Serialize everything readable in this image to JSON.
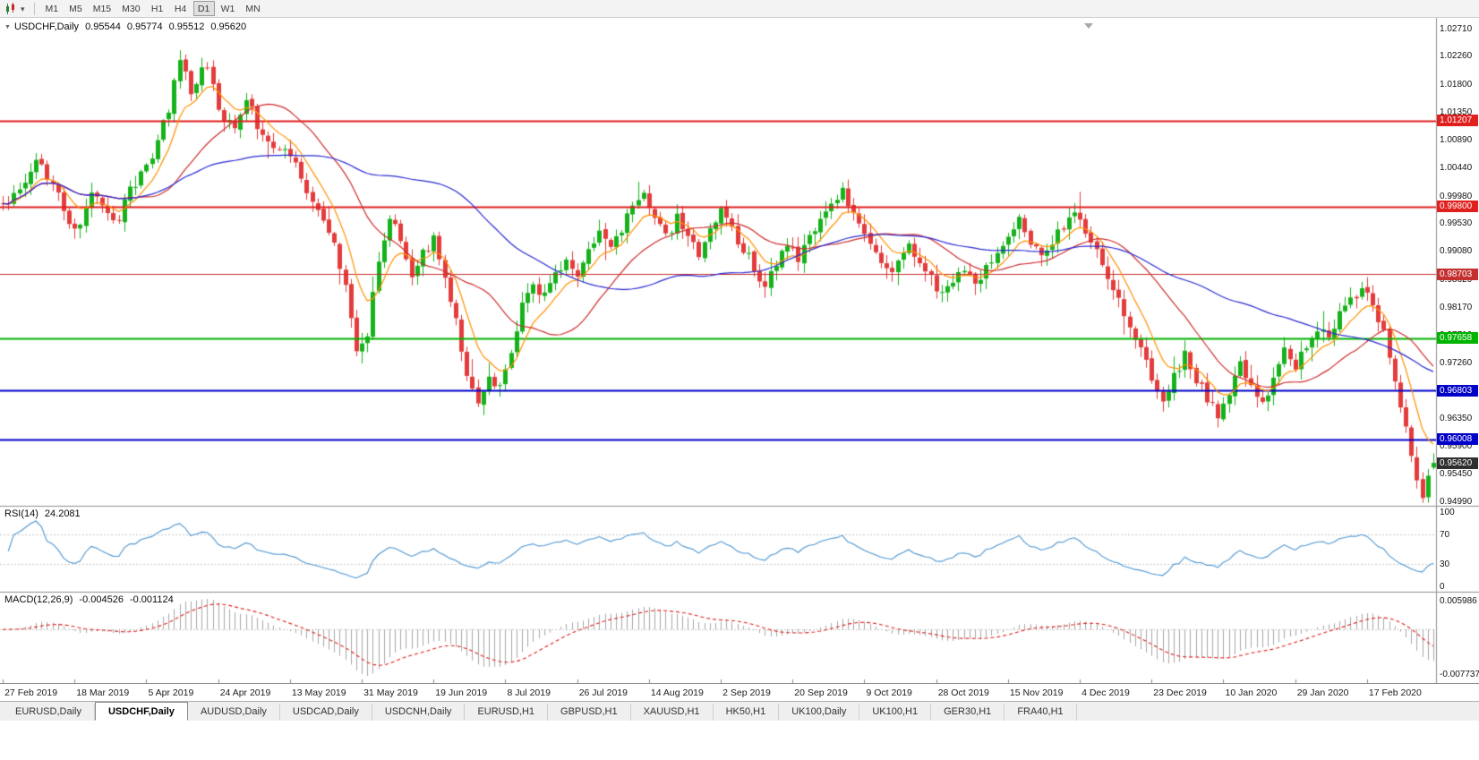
{
  "toolbar": {
    "timeframes": [
      "M1",
      "M5",
      "M15",
      "M30",
      "H1",
      "H4",
      "D1",
      "W1",
      "MN"
    ],
    "active_timeframe": "D1"
  },
  "chart": {
    "title": {
      "symbol_period": "USDCHF,Daily",
      "open": "0.95544",
      "high": "0.95774",
      "low": "0.95512",
      "close": "0.95620"
    },
    "price_axis": {
      "min": 0.9492,
      "max": 1.0288,
      "labels": [
        "1.02710",
        "1.02260",
        "1.01800",
        "1.01350",
        "1.00890",
        "1.00440",
        "0.99980",
        "0.99530",
        "0.99080",
        "0.98620",
        "0.98170",
        "0.97710",
        "0.97260",
        "0.96800",
        "0.96350",
        "0.95900",
        "0.95450",
        "0.94990"
      ]
    },
    "date_axis": [
      "27 Feb 2019",
      "18 Mar 2019",
      "5 Apr 2019",
      "24 Apr 2019",
      "13 May 2019",
      "31 May 2019",
      "19 Jun 2019",
      "8 Jul 2019",
      "26 Jul 2019",
      "14 Aug 2019",
      "2 Sep 2019",
      "20 Sep 2019",
      "9 Oct 2019",
      "28 Oct 2019",
      "15 Nov 2019",
      "4 Dec 2019",
      "23 Dec 2019",
      "10 Jan 2020",
      "29 Jan 2020",
      "17 Feb 2020"
    ],
    "hlines": [
      {
        "price": 1.01207,
        "label": "1.01207",
        "color": "#e01f1f",
        "width": 2
      },
      {
        "price": 0.998,
        "label": "0.99800",
        "color": "#e01f1f",
        "width": 2
      },
      {
        "price": 0.98703,
        "label": "0.98703",
        "color": "#c43030",
        "width": 1
      },
      {
        "price": 0.97658,
        "label": "0.97658",
        "color": "#00b400",
        "width": 2
      },
      {
        "price": 0.96803,
        "label": "0.96803",
        "color": "#0000c8",
        "width": 2
      },
      {
        "price": 0.96008,
        "label": "0.96008",
        "color": "#0000c8",
        "width": 2
      }
    ],
    "current_price": {
      "label": "0.95620",
      "value": 0.9562,
      "color": "#2f2f2f"
    }
  },
  "indicators": {
    "rsi": {
      "name": "RSI(14)",
      "value": "24.2081",
      "color": "#4d96d2",
      "levels": [
        "100",
        "70",
        "30",
        "0"
      ],
      "level_values": [
        100,
        70,
        30,
        0
      ]
    },
    "macd": {
      "name": "MACD(12,26,9)",
      "value": "-0.004526",
      "signal_value": "-0.001124",
      "axis_max": "0.005986",
      "axis_min": "-0.007737"
    }
  },
  "tabs": [
    {
      "label": "EURUSD,Daily",
      "active": false
    },
    {
      "label": "USDCHF,Daily",
      "active": true
    },
    {
      "label": "AUDUSD,Daily",
      "active": false
    },
    {
      "label": "USDCAD,Daily",
      "active": false
    },
    {
      "label": "USDCNH,Daily",
      "active": false
    },
    {
      "label": "EURUSD,H1",
      "active": false
    },
    {
      "label": "GBPUSD,H1",
      "active": false
    },
    {
      "label": "XAUUSD,H1",
      "active": false
    },
    {
      "label": "HK50,H1",
      "active": false
    },
    {
      "label": "UK100,Daily",
      "active": false
    },
    {
      "label": "UK100,H1",
      "active": false
    },
    {
      "label": "GER30,H1",
      "active": false
    },
    {
      "label": "FRA40,H1",
      "active": false
    }
  ],
  "chart_data": {
    "type": "candlestick",
    "symbol": "USDCHF",
    "period": "Daily",
    "bars": 260,
    "noise_seed": 11,
    "last_bar": {
      "open": 0.95544,
      "high": 0.95774,
      "low": 0.95512,
      "close": 0.9562
    },
    "keypoints": [
      [
        0,
        0.9985
      ],
      [
        3,
        1.001
      ],
      [
        6,
        1.0052
      ],
      [
        9,
        1.0015
      ],
      [
        13,
        0.9938
      ],
      [
        16,
        1.0002
      ],
      [
        20,
        0.9955
      ],
      [
        24,
        1.002
      ],
      [
        27,
        1.006
      ],
      [
        30,
        1.014
      ],
      [
        32,
        1.0222
      ],
      [
        34,
        1.017
      ],
      [
        37,
        1.0208
      ],
      [
        40,
        1.0125
      ],
      [
        42,
        1.01
      ],
      [
        44,
        1.0155
      ],
      [
        47,
        1.009
      ],
      [
        50,
        1.008
      ],
      [
        53,
        1.0045
      ],
      [
        56,
        0.999
      ],
      [
        58,
        0.9955
      ],
      [
        60,
        0.993
      ],
      [
        62,
        0.9845
      ],
      [
        64,
        0.9742
      ],
      [
        66,
        0.9775
      ],
      [
        68,
        0.989
      ],
      [
        70,
        0.9958
      ],
      [
        72,
        0.993
      ],
      [
        74,
        0.9868
      ],
      [
        76,
        0.9902
      ],
      [
        78,
        0.993
      ],
      [
        80,
        0.9872
      ],
      [
        82,
        0.979
      ],
      [
        84,
        0.9705
      ],
      [
        86,
        0.9668
      ],
      [
        88,
        0.97
      ],
      [
        90,
        0.9682
      ],
      [
        92,
        0.974
      ],
      [
        94,
        0.982
      ],
      [
        96,
        0.9855
      ],
      [
        98,
        0.9832
      ],
      [
        100,
        0.987
      ],
      [
        102,
        0.99
      ],
      [
        104,
        0.9872
      ],
      [
        106,
        0.9912
      ],
      [
        108,
        0.994
      ],
      [
        110,
        0.9912
      ],
      [
        112,
        0.9945
      ],
      [
        114,
        0.9975
      ],
      [
        116,
        1.0
      ],
      [
        118,
        0.9965
      ],
      [
        120,
        0.9932
      ],
      [
        122,
        0.996
      ],
      [
        124,
        0.994
      ],
      [
        126,
        0.9906
      ],
      [
        128,
        0.994
      ],
      [
        130,
        0.997
      ],
      [
        132,
        0.9942
      ],
      [
        134,
        0.9912
      ],
      [
        136,
        0.9882
      ],
      [
        138,
        0.9852
      ],
      [
        140,
        0.988
      ],
      [
        142,
        0.992
      ],
      [
        144,
        0.9892
      ],
      [
        146,
        0.993
      ],
      [
        148,
        0.996
      ],
      [
        150,
        0.9985
      ],
      [
        152,
        1.0005
      ],
      [
        154,
        0.997
      ],
      [
        156,
        0.994
      ],
      [
        158,
        0.9906
      ],
      [
        160,
        0.9872
      ],
      [
        162,
        0.9892
      ],
      [
        164,
        0.992
      ],
      [
        166,
        0.9892
      ],
      [
        168,
        0.9862
      ],
      [
        170,
        0.9832
      ],
      [
        172,
        0.9852
      ],
      [
        174,
        0.988
      ],
      [
        176,
        0.9856
      ],
      [
        178,
        0.988
      ],
      [
        180,
        0.991
      ],
      [
        182,
        0.9932
      ],
      [
        184,
        0.9955
      ],
      [
        186,
        0.9926
      ],
      [
        188,
        0.9896
      ],
      [
        190,
        0.992
      ],
      [
        192,
        0.995
      ],
      [
        194,
        0.9975
      ],
      [
        196,
        0.9942
      ],
      [
        198,
        0.9906
      ],
      [
        200,
        0.987
      ],
      [
        202,
        0.983
      ],
      [
        204,
        0.979
      ],
      [
        206,
        0.975
      ],
      [
        208,
        0.9702
      ],
      [
        210,
        0.9665
      ],
      [
        212,
        0.97
      ],
      [
        214,
        0.9736
      ],
      [
        216,
        0.97
      ],
      [
        218,
        0.9665
      ],
      [
        220,
        0.9638
      ],
      [
        222,
        0.968
      ],
      [
        224,
        0.972
      ],
      [
        226,
        0.969
      ],
      [
        228,
        0.9658
      ],
      [
        230,
        0.97
      ],
      [
        232,
        0.9742
      ],
      [
        234,
        0.9722
      ],
      [
        236,
        0.9752
      ],
      [
        238,
        0.9782
      ],
      [
        240,
        0.9762
      ],
      [
        242,
        0.9802
      ],
      [
        244,
        0.9832
      ],
      [
        246,
        0.9846
      ],
      [
        248,
        0.982
      ],
      [
        250,
        0.978
      ],
      [
        252,
        0.97
      ],
      [
        254,
        0.962
      ],
      [
        256,
        0.954
      ],
      [
        257,
        0.9506
      ],
      [
        258,
        0.9549
      ],
      [
        259,
        0.9562
      ]
    ],
    "moving_averages": [
      {
        "period": 8,
        "method": "ema",
        "color": "#ff9100"
      },
      {
        "period": 21,
        "method": "sma",
        "color": "#cf2e2e"
      },
      {
        "period": 55,
        "method": "sma",
        "color": "#2b2bd4"
      }
    ],
    "colors": {
      "up": "#16b21c",
      "down": "#e43c3c",
      "macd_hist": "#a8a8a8",
      "macd_signal": "#e02020"
    }
  }
}
